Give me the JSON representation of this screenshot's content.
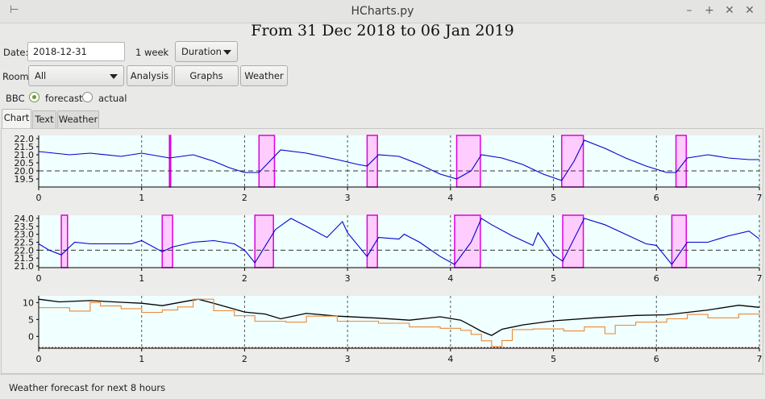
{
  "window": {
    "title": "HCharts.py"
  },
  "heading": "From 31 Dec 2018 to 06 Jan 2019",
  "controls": {
    "date_label": "Date:",
    "date_value": "2018-12-31",
    "period_text": "1 week",
    "duration_select": "Duration",
    "room_label": "Room:",
    "room_select": "All",
    "analysis_button": "Analysis",
    "graphs_button": "Graphs",
    "weather_button": "Weather",
    "source_label": "BBC",
    "forecast_label": "forecast",
    "actual_label": "actual",
    "forecast_selected": true
  },
  "tabs": [
    {
      "label": "Chart",
      "active": true
    },
    {
      "label": "Text",
      "active": false
    },
    {
      "label": "Weather",
      "active": false
    }
  ],
  "status_text": "Weather forecast for next 8 hours",
  "colors": {
    "plot_bg": "#f0ffff",
    "temp_line": "#0000cc",
    "heating_fill": "#ffccff",
    "heating_edge": "#dd00dd",
    "outdoor_line": "#000000",
    "forecast_line": "#ee8833",
    "frost_line": "#cc3333"
  },
  "chart_data": [
    {
      "type": "line",
      "title": "",
      "xlabel": "",
      "ylabel": "",
      "xlim": [
        0,
        7
      ],
      "ylim": [
        19.0,
        22.2
      ],
      "x_ticks": [
        "0",
        "1",
        "2",
        "3",
        "4",
        "5",
        "6",
        "7"
      ],
      "y_ticks": [
        "19.5",
        "20.0",
        "20.5",
        "21.0",
        "21.5",
        "22.0"
      ],
      "setpoint": 20.0,
      "heating_periods": [
        [
          1.27,
          1.28
        ],
        [
          2.14,
          2.29
        ],
        [
          3.19,
          3.29
        ],
        [
          4.06,
          4.29
        ],
        [
          5.08,
          5.29
        ],
        [
          6.19,
          6.29
        ]
      ],
      "series": [
        {
          "name": "temperature",
          "x": [
            0,
            0.3,
            0.5,
            0.8,
            1.0,
            1.27,
            1.5,
            1.7,
            1.85,
            2.0,
            2.14,
            2.35,
            2.6,
            2.9,
            3.1,
            3.19,
            3.3,
            3.5,
            3.7,
            3.9,
            4.06,
            4.2,
            4.3,
            4.5,
            4.7,
            4.9,
            5.08,
            5.2,
            5.3,
            5.5,
            5.7,
            5.9,
            6.1,
            6.19,
            6.3,
            6.5,
            6.7,
            6.9,
            7.0
          ],
          "y": [
            21.2,
            21.0,
            21.1,
            20.9,
            21.1,
            20.8,
            21.0,
            20.6,
            20.2,
            19.9,
            19.9,
            21.3,
            21.1,
            20.7,
            20.4,
            20.3,
            21.0,
            20.9,
            20.4,
            19.8,
            19.5,
            20.0,
            21.0,
            20.8,
            20.4,
            19.8,
            19.4,
            20.6,
            21.9,
            21.4,
            20.8,
            20.3,
            19.9,
            19.9,
            20.8,
            21.0,
            20.8,
            20.7,
            20.7
          ]
        }
      ]
    },
    {
      "type": "line",
      "title": "",
      "xlabel": "",
      "ylabel": "",
      "xlim": [
        0,
        7
      ],
      "ylim": [
        20.9,
        24.2
      ],
      "x_ticks": [
        "0",
        "1",
        "2",
        "3",
        "4",
        "5",
        "6",
        "7"
      ],
      "y_ticks": [
        "21.0",
        "21.5",
        "22.0",
        "22.5",
        "23.0",
        "23.5",
        "24.0"
      ],
      "setpoint": 22.0,
      "heating_periods": [
        [
          0.22,
          0.28
        ],
        [
          1.2,
          1.3
        ],
        [
          2.1,
          2.28
        ],
        [
          3.19,
          3.29
        ],
        [
          4.04,
          4.29
        ],
        [
          5.09,
          5.29
        ],
        [
          6.15,
          6.29
        ]
      ],
      "series": [
        {
          "name": "temperature",
          "x": [
            0,
            0.1,
            0.22,
            0.3,
            0.35,
            0.5,
            0.7,
            0.9,
            1.0,
            1.2,
            1.3,
            1.5,
            1.7,
            1.9,
            2.0,
            2.1,
            2.3,
            2.45,
            2.6,
            2.8,
            2.95,
            3.0,
            3.19,
            3.3,
            3.5,
            3.55,
            3.7,
            3.9,
            4.04,
            4.2,
            4.3,
            4.4,
            4.6,
            4.8,
            4.85,
            5.0,
            5.09,
            5.3,
            5.5,
            5.7,
            5.9,
            6.0,
            6.15,
            6.3,
            6.5,
            6.7,
            6.9,
            7.0
          ],
          "y": [
            22.4,
            22.0,
            21.7,
            22.2,
            22.5,
            22.4,
            22.4,
            22.4,
            22.6,
            21.9,
            22.2,
            22.5,
            22.6,
            22.4,
            22.0,
            21.2,
            23.3,
            24.0,
            23.5,
            22.8,
            23.8,
            23.1,
            21.6,
            22.8,
            22.7,
            23.0,
            22.5,
            21.6,
            21.1,
            22.5,
            24.0,
            23.6,
            22.9,
            22.3,
            23.1,
            21.7,
            21.3,
            24.0,
            23.6,
            23.0,
            22.4,
            22.3,
            21.1,
            22.5,
            22.5,
            22.9,
            23.2,
            22.7
          ]
        }
      ]
    },
    {
      "type": "line",
      "title": "",
      "xlabel": "",
      "ylabel": "",
      "xlim": [
        0,
        7
      ],
      "ylim": [
        -3.5,
        12
      ],
      "x_ticks": [
        "0",
        "1",
        "2",
        "3",
        "4",
        "5",
        "6",
        "7"
      ],
      "y_ticks": [
        "0",
        "5",
        "10"
      ],
      "frost_line": -3.3,
      "series": [
        {
          "name": "outdoor",
          "x": [
            0,
            0.2,
            0.5,
            0.8,
            1.0,
            1.2,
            1.45,
            1.55,
            1.7,
            2.0,
            2.2,
            2.35,
            2.6,
            2.9,
            3.3,
            3.6,
            3.9,
            4.1,
            4.2,
            4.3,
            4.4,
            4.5,
            4.7,
            5.0,
            5.4,
            5.8,
            6.1,
            6.5,
            6.8,
            7.0
          ],
          "y": [
            11.0,
            10.2,
            10.6,
            10.1,
            9.8,
            9.1,
            10.5,
            11.0,
            9.8,
            7.2,
            6.6,
            5.2,
            6.8,
            6.0,
            5.4,
            4.8,
            5.8,
            4.8,
            3.2,
            1.5,
            0.3,
            2.1,
            3.4,
            4.6,
            5.5,
            6.2,
            6.4,
            7.8,
            9.2,
            8.6
          ]
        },
        {
          "name": "forecast",
          "x": [
            0,
            0.3,
            0.5,
            0.6,
            0.8,
            1.0,
            1.2,
            1.35,
            1.5,
            1.7,
            1.9,
            2.1,
            2.4,
            2.6,
            2.9,
            3.3,
            3.6,
            3.9,
            4.1,
            4.2,
            4.3,
            4.4,
            4.5,
            4.6,
            4.8,
            5.1,
            5.3,
            5.5,
            5.6,
            5.8,
            6.1,
            6.3,
            6.5,
            6.8,
            7.0
          ],
          "y": [
            8.5,
            7.5,
            10.0,
            9.0,
            8.2,
            7.1,
            7.8,
            8.7,
            11.0,
            7.6,
            6.1,
            4.5,
            4.2,
            6.0,
            4.5,
            3.9,
            2.8,
            2.4,
            1.8,
            0.6,
            -1.3,
            -3.0,
            -1.2,
            2.0,
            2.2,
            1.6,
            2.8,
            0.8,
            3.3,
            4.2,
            5.2,
            6.5,
            5.5,
            6.6,
            6.3
          ]
        }
      ]
    }
  ]
}
